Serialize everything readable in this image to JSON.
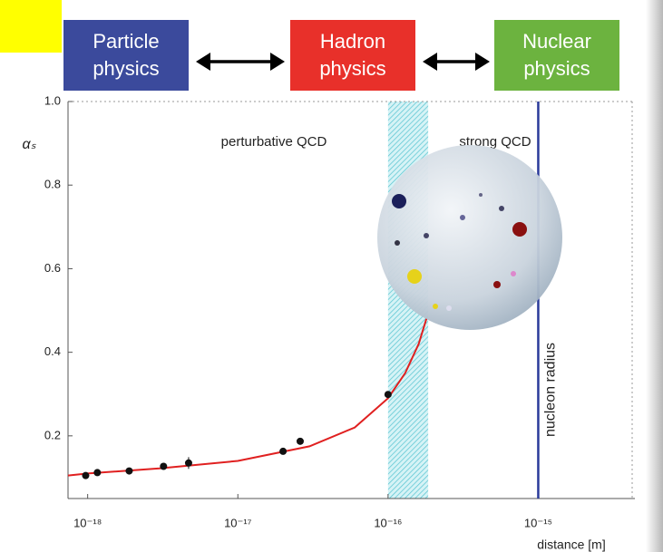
{
  "header": {
    "boxes": [
      {
        "lines": [
          "Particle",
          "physics"
        ],
        "color": "#3b4a9c"
      },
      {
        "lines": [
          "Hadron",
          "physics"
        ],
        "color": "#e8302a"
      },
      {
        "lines": [
          "Nuclear",
          "physics"
        ],
        "color": "#6cb33f"
      }
    ]
  },
  "chart_data": {
    "type": "line",
    "ylabel": "αₛ",
    "xlabel": "distance [m]",
    "xlog": true,
    "xlim": [
      7.4e-19,
      4.4e-15
    ],
    "xticks": [
      {
        "value": 1e-18,
        "label": "10⁻¹⁸"
      },
      {
        "value": 1e-17,
        "label": "10⁻¹⁷"
      },
      {
        "value": 1e-16,
        "label": "10⁻¹⁶"
      },
      {
        "value": 1e-15,
        "label": "10⁻¹⁵"
      }
    ],
    "ylim": [
      0.05,
      1.0
    ],
    "yticks": [
      0.2,
      0.4,
      0.6,
      0.8,
      {
        "value": 1,
        "label": "1.0"
      }
    ],
    "annotations": [
      "perturbative QCD",
      "strong QCD"
    ],
    "band": [
      1e-16,
      1.85e-16
    ],
    "vline": {
      "value": 1e-15,
      "label": "nucleon radius",
      "color": "#2a3a9a"
    },
    "series": [
      {
        "type": "line",
        "color": "#e02020",
        "x": [
          7.4e-19,
          1e-18,
          3e-18,
          1e-17,
          3e-17,
          6e-17,
          1e-16,
          1.3e-16,
          1.6e-16,
          1.8e-16
        ],
        "values": [
          0.105,
          0.11,
          0.122,
          0.14,
          0.175,
          0.22,
          0.29,
          0.35,
          0.42,
          0.48
        ]
      },
      {
        "type": "scatter",
        "color": "#111111",
        "x": [
          9.7e-19,
          1.16e-18,
          1.89e-18,
          3.2e-18,
          4.7e-18,
          2e-17,
          2.6e-17,
          1e-16
        ],
        "values": [
          0.105,
          0.112,
          0.116,
          0.127,
          0.135,
          0.163,
          0.187,
          0.299
        ],
        "error": [
          null,
          null,
          null,
          null,
          0.028,
          null,
          null,
          null
        ]
      }
    ]
  }
}
